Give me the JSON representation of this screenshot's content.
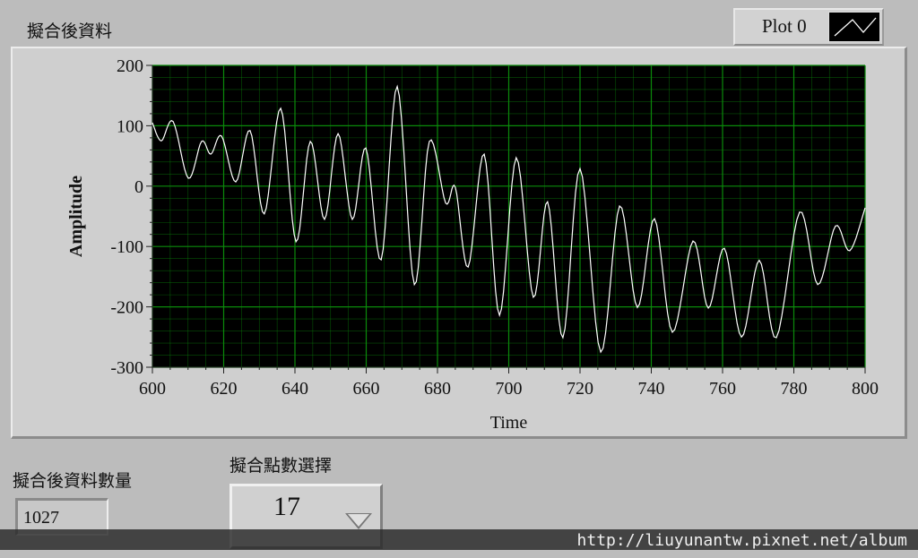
{
  "graph": {
    "title": "擬合後資料",
    "legend": {
      "label": "Plot 0",
      "icon": "line-plot-icon"
    }
  },
  "chart_data": {
    "type": "line",
    "title": "",
    "xlabel": "Time",
    "ylabel": "Amplitude",
    "xlim": [
      600,
      800
    ],
    "ylim": [
      -300,
      200
    ],
    "xticks": [
      "600",
      "620",
      "640",
      "660",
      "680",
      "700",
      "720",
      "740",
      "760",
      "780",
      "800"
    ],
    "yticks": [
      "200",
      "100",
      "0",
      "-100",
      "-200",
      "-300"
    ],
    "grid": true,
    "colors": {
      "background": "#000000",
      "grid": "#0b8a0b",
      "line": "#ffffff"
    },
    "series": [
      {
        "x": [
          600,
          602.5,
          605.8,
          610.1,
          613.8,
          616.4,
          619.4,
          623.4,
          627.4,
          631.4,
          636,
          640.3,
          644.3,
          648.3,
          652.1,
          656.1,
          659.9,
          664.2,
          668.7,
          673.5,
          677.7,
          682.3,
          685,
          688.6,
          693.1,
          697.4,
          702.1,
          706.9,
          710.9,
          715.2,
          720,
          725.8,
          731.1,
          736.1,
          740.9,
          745.9,
          751.7,
          756,
          760.5,
          765.3,
          770.3,
          775.1,
          781.6,
          786.7,
          791.7,
          795.7,
          800
        ],
        "y": [
          105,
          75,
          107,
          13,
          74,
          53,
          83,
          7,
          92,
          -46,
          129,
          -92,
          74,
          -55,
          87,
          -55,
          63,
          -122,
          165,
          -163,
          74,
          -28,
          -2,
          -134,
          53,
          -214,
          47,
          -184,
          -26,
          -251,
          29,
          -275,
          -33,
          -201,
          -54,
          -242,
          -91,
          -202,
          -103,
          -250,
          -123,
          -251,
          -43,
          -163,
          -66,
          -107,
          -36
        ]
      }
    ]
  },
  "count_indicator": {
    "label": "擬合後資料數量",
    "value": "1027"
  },
  "points_selector": {
    "label": "擬合點數選擇",
    "value": "17",
    "icon": "dropdown-arrow-icon"
  },
  "watermark": {
    "text": "http://liuyunantw.pixnet.net/album"
  }
}
